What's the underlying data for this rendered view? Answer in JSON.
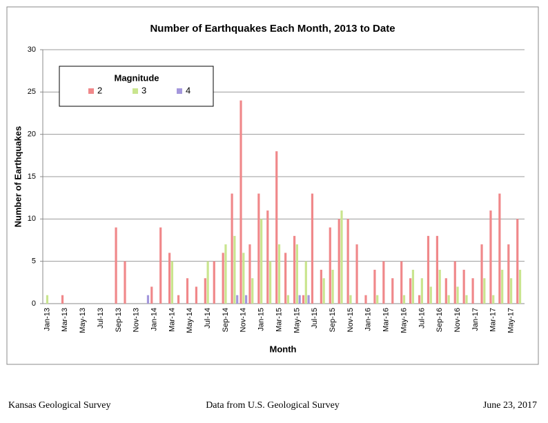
{
  "chart_data": {
    "type": "bar",
    "title": "Number of Earthquakes Each Month, 2013 to Date",
    "xlabel": "Month",
    "ylabel": "Number of Earthquakes",
    "legend_title": "Magnitude",
    "legend": "upper left",
    "grid": true,
    "categories": [
      "Jan-13",
      null,
      "Mar-13",
      null,
      "May-13",
      null,
      "Jul-13",
      null,
      "Sep-13",
      null,
      "Nov-13",
      null,
      "Jan-14",
      null,
      "Mar-14",
      null,
      "May-14",
      null,
      "Jul-14",
      null,
      "Sep-14",
      null,
      "Nov-14",
      null,
      "Jan-15",
      null,
      "Mar-15",
      null,
      "May-15",
      null,
      "Jul-15",
      null,
      "Sep-15",
      null,
      "Nov-15",
      null,
      "Jan-16",
      null,
      "Mar-16",
      null,
      "May-16",
      null,
      "Jul-16",
      null,
      "Sep-16",
      null,
      "Nov-16",
      null,
      "Jan-17",
      null,
      "Mar-17",
      null,
      "May-17",
      null
    ],
    "series": [
      {
        "name": "2",
        "color": "#f0888a",
        "values": [
          0,
          0,
          1,
          0,
          0,
          0,
          0,
          0,
          9,
          5,
          0,
          0,
          2,
          9,
          6,
          1,
          3,
          2,
          3,
          5,
          6,
          13,
          24,
          7,
          13,
          11,
          18,
          6,
          8,
          1,
          13,
          4,
          9,
          10,
          10,
          7,
          1,
          4,
          5,
          3,
          5,
          3,
          1,
          8,
          8,
          3,
          5,
          4,
          3,
          7,
          11,
          13,
          7,
          10
        ]
      },
      {
        "name": "3",
        "color": "#c9e58e",
        "values": [
          1,
          0,
          0,
          0,
          0,
          0,
          0,
          0,
          0,
          0,
          0,
          0,
          0,
          0,
          5,
          0,
          0,
          0,
          5,
          0,
          7,
          8,
          6,
          3,
          10,
          5,
          7,
          1,
          7,
          5,
          0,
          3,
          4,
          11,
          1,
          0,
          0,
          1,
          0,
          0,
          1,
          4,
          3,
          2,
          4,
          1,
          2,
          1,
          0,
          3,
          1,
          4,
          3,
          4
        ]
      },
      {
        "name": "4",
        "color": "#a497dc",
        "values": [
          0,
          0,
          0,
          0,
          0,
          0,
          0,
          0,
          0,
          0,
          0,
          1,
          0,
          0,
          0,
          0,
          0,
          0,
          0,
          0,
          0,
          1,
          1,
          0,
          0,
          0,
          0,
          0,
          1,
          1,
          0,
          0,
          0,
          0,
          0,
          0,
          0,
          0,
          0,
          0,
          0,
          0,
          0,
          0,
          0,
          0,
          0,
          0,
          0,
          0,
          0,
          0,
          0,
          0
        ]
      }
    ],
    "ylim": [
      0,
      30
    ],
    "yticks": [
      0,
      5,
      10,
      15,
      20,
      25,
      30
    ]
  },
  "footer": {
    "left": "Kansas Geological Survey",
    "center": "Data from U.S. Geological Survey",
    "right": "June 23, 2017"
  }
}
